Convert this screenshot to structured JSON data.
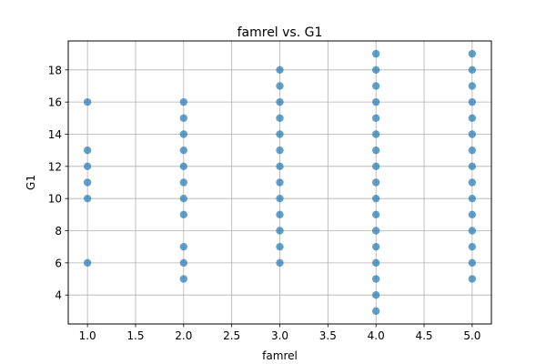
{
  "chart_data": {
    "type": "scatter",
    "title": "famrel vs. G1",
    "xlabel": "famrel",
    "ylabel": "G1",
    "xlim": [
      0.8,
      5.2
    ],
    "ylim": [
      2.2,
      19.8
    ],
    "xticks": [
      1.0,
      1.5,
      2.0,
      2.5,
      3.0,
      3.5,
      4.0,
      4.5,
      5.0
    ],
    "xtick_labels": [
      "1.0",
      "1.5",
      "2.0",
      "2.5",
      "3.0",
      "3.5",
      "4.0",
      "4.5",
      "5.0"
    ],
    "yticks": [
      4,
      6,
      8,
      10,
      12,
      14,
      16,
      18
    ],
    "ytick_labels": [
      "4",
      "6",
      "8",
      "10",
      "12",
      "14",
      "16",
      "18"
    ],
    "grid": true,
    "marker_color": "#1f77b4",
    "series": [
      {
        "points": [
          [
            1,
            6
          ],
          [
            1,
            10
          ],
          [
            1,
            11
          ],
          [
            1,
            12
          ],
          [
            1,
            13
          ],
          [
            1,
            16
          ],
          [
            2,
            5
          ],
          [
            2,
            6
          ],
          [
            2,
            7
          ],
          [
            2,
            9
          ],
          [
            2,
            10
          ],
          [
            2,
            11
          ],
          [
            2,
            12
          ],
          [
            2,
            13
          ],
          [
            2,
            14
          ],
          [
            2,
            15
          ],
          [
            2,
            16
          ],
          [
            3,
            6
          ],
          [
            3,
            7
          ],
          [
            3,
            8
          ],
          [
            3,
            9
          ],
          [
            3,
            10
          ],
          [
            3,
            11
          ],
          [
            3,
            12
          ],
          [
            3,
            13
          ],
          [
            3,
            14
          ],
          [
            3,
            15
          ],
          [
            3,
            16
          ],
          [
            3,
            17
          ],
          [
            3,
            18
          ],
          [
            4,
            3
          ],
          [
            4,
            4
          ],
          [
            4,
            5
          ],
          [
            4,
            6
          ],
          [
            4,
            7
          ],
          [
            4,
            8
          ],
          [
            4,
            9
          ],
          [
            4,
            10
          ],
          [
            4,
            11
          ],
          [
            4,
            12
          ],
          [
            4,
            13
          ],
          [
            4,
            14
          ],
          [
            4,
            15
          ],
          [
            4,
            16
          ],
          [
            4,
            17
          ],
          [
            4,
            18
          ],
          [
            4,
            19
          ],
          [
            5,
            5
          ],
          [
            5,
            6
          ],
          [
            5,
            7
          ],
          [
            5,
            8
          ],
          [
            5,
            9
          ],
          [
            5,
            10
          ],
          [
            5,
            11
          ],
          [
            5,
            12
          ],
          [
            5,
            13
          ],
          [
            5,
            14
          ],
          [
            5,
            15
          ],
          [
            5,
            16
          ],
          [
            5,
            17
          ],
          [
            5,
            18
          ],
          [
            5,
            19
          ]
        ]
      }
    ]
  }
}
